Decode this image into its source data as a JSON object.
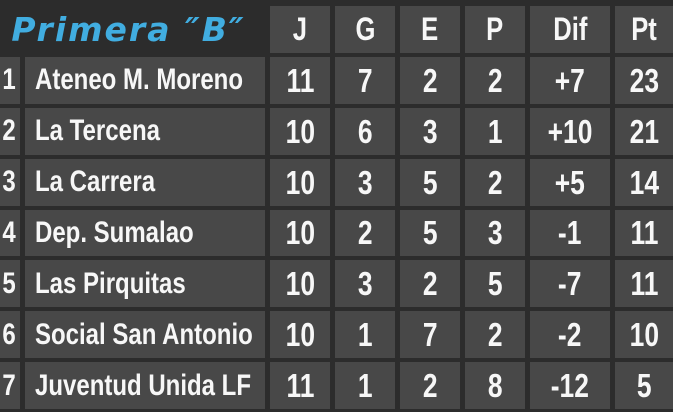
{
  "title": "Primera ″B″",
  "colors": {
    "background": "#2c2c2c",
    "cell": "#484848",
    "text": "#f7f7f7",
    "accent_blue": "#41ade0"
  },
  "chart_data": {
    "type": "table",
    "title": "Primera ″B″",
    "columns": [
      "J",
      "G",
      "E",
      "P",
      "Dif",
      "Pt"
    ],
    "rows": [
      [
        "1",
        "Ateneo M. Moreno",
        "11",
        "7",
        "2",
        "2",
        "+7",
        "23"
      ],
      [
        "2",
        "La Tercena",
        "10",
        "6",
        "3",
        "1",
        "+10",
        "21"
      ],
      [
        "3",
        "La Carrera",
        "10",
        "3",
        "5",
        "2",
        "+5",
        "14"
      ],
      [
        "4",
        "Dep. Sumalao",
        "10",
        "2",
        "5",
        "3",
        "-1",
        "11"
      ],
      [
        "5",
        "Las Pirquitas",
        "10",
        "3",
        "2",
        "5",
        "-7",
        "11"
      ],
      [
        "6",
        "Social San Antonio",
        "10",
        "1",
        "7",
        "2",
        "-2",
        "10"
      ],
      [
        "7",
        "Juventud Unida LF",
        "11",
        "1",
        "2",
        "8",
        "-12",
        "5"
      ]
    ],
    "layout": {
      "grid": "cell-spacing dark gaps",
      "legend": "none"
    }
  }
}
